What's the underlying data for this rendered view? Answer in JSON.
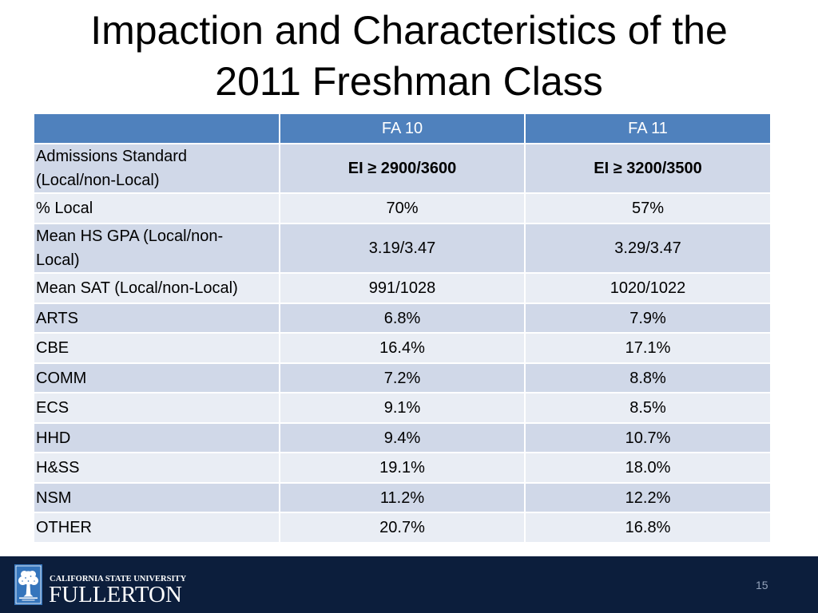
{
  "slide": {
    "title": "Impaction and Characteristics of the 2011 Freshman Class"
  },
  "table": {
    "column_headers": [
      "FA 10",
      "FA 11"
    ],
    "rows": [
      {
        "label": "Admissions Standard (Local/non-Local)",
        "fa10": "EI ≥ 2900/3600",
        "fa11": "EI ≥ 3200/3500"
      },
      {
        "label": "% Local",
        "fa10": "70%",
        "fa11": "57%"
      },
      {
        "label": "Mean HS GPA (Local/non-Local)",
        "fa10": "3.19/3.47",
        "fa11": "3.29/3.47"
      },
      {
        "label": "Mean SAT (Local/non-Local)",
        "fa10": "991/1028",
        "fa11": "1020/1022"
      },
      {
        "label": "ARTS",
        "fa10": "6.8%",
        "fa11": "7.9%"
      },
      {
        "label": "CBE",
        "fa10": "16.4%",
        "fa11": "17.1%"
      },
      {
        "label": "COMM",
        "fa10": "7.2%",
        "fa11": "8.8%"
      },
      {
        "label": "ECS",
        "fa10": "9.1%",
        "fa11": "8.5%"
      },
      {
        "label": "HHD",
        "fa10": "9.4%",
        "fa11": "10.7%"
      },
      {
        "label": "H&SS",
        "fa10": "19.1%",
        "fa11": "18.0%"
      },
      {
        "label": "NSM",
        "fa10": "11.2%",
        "fa11": "12.2%"
      },
      {
        "label": "OTHER",
        "fa10": "20.7%",
        "fa11": "16.8%"
      }
    ]
  },
  "footer": {
    "logo_icon": "tree-emblem-icon",
    "logo_university_line": "CALIFORNIA STATE UNIVERSITY",
    "logo_campus_line": "FULLERTON",
    "page_number": "15"
  },
  "colors": {
    "header_bg": "#4F81BD",
    "band_dark": "#D0D8E8",
    "band_light": "#E9EDF4",
    "footer_bg": "#0C1E3C",
    "emblem_blue": "#3575BC",
    "page_number_text": "#94A3BB"
  }
}
